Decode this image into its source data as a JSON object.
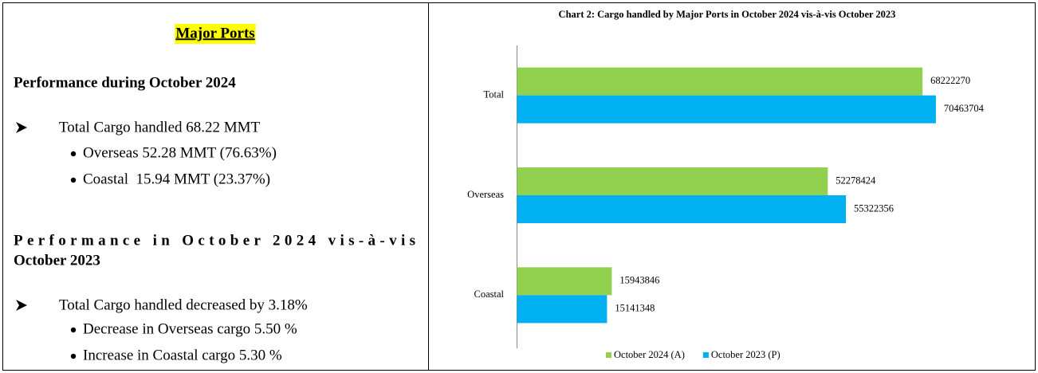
{
  "panel": {
    "heading": "Major Ports",
    "section1": {
      "title": "Performance during October 2024",
      "point": "Total Cargo handled 68.22 MMT",
      "subpoints": [
        "Overseas 52.28 MMT (76.63%)",
        "Coastal  15.94 MMT (23.37%)"
      ]
    },
    "section2": {
      "title_lines": [
        "Performance in October 2024 vis-à-vis",
        "October 2023"
      ],
      "point": "Total Cargo handled decreased by 3.18%",
      "subpoints": [
        "Decrease in Overseas cargo 5.50 %",
        "Increase in Coastal cargo 5.30 %"
      ]
    }
  },
  "chart_data": {
    "type": "hbar",
    "title": "Chart 2: Cargo handled by Major Ports in October 2024 vis-à-vis October 2023",
    "categories": [
      "Total",
      "Overseas",
      "Coastal"
    ],
    "series": [
      {
        "name": "October 2024 (A)",
        "color": "#92d050",
        "values": [
          68222270,
          52278424,
          15943846
        ]
      },
      {
        "name": "October 2023 (P)",
        "color": "#00b0f0",
        "values": [
          70463704,
          55322356,
          15141348
        ]
      }
    ],
    "xlim": [
      0,
      80000000
    ],
    "legend": "bottom"
  }
}
